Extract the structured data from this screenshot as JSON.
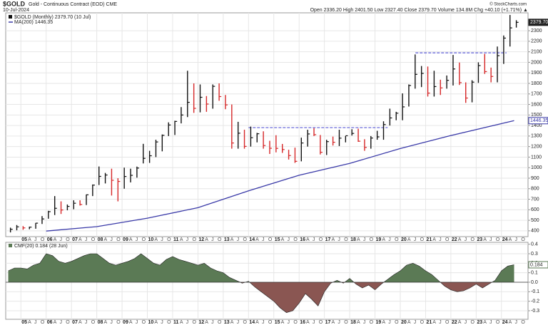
{
  "chart_data": [
    {
      "type": "ohlc",
      "title": "$GOLD",
      "subtitle": "Gold - Continuous Contract (EOD) CME",
      "date": "10-Jul-2024",
      "quote": "Open 2336.20  High 2401.50  Low 2327.40  Close 2379.70  Volume 134.8M  Chg +40.10 (+1.71%) ▲",
      "credit": "© StockCharts.com",
      "name": "$GOLD (Monthly) 2379.70 (10 Jul)",
      "up_color": "#111111",
      "down_color": "#d62728",
      "x": [
        2004.5,
        2004.75,
        2005,
        2005.25,
        2005.5,
        2005.75,
        2006,
        2006.25,
        2006.5,
        2006.75,
        2007,
        2007.25,
        2007.5,
        2007.75,
        2008,
        2008.25,
        2008.5,
        2008.75,
        2009,
        2009.25,
        2009.5,
        2009.75,
        2010,
        2010.25,
        2010.5,
        2010.75,
        2011,
        2011.25,
        2011.5,
        2011.75,
        2012,
        2012.25,
        2012.5,
        2012.75,
        2013,
        2013.25,
        2013.5,
        2013.75,
        2014,
        2014.25,
        2014.5,
        2014.75,
        2015,
        2015.25,
        2015.5,
        2015.75,
        2016,
        2016.25,
        2016.5,
        2016.75,
        2017,
        2017.25,
        2017.5,
        2017.75,
        2018,
        2018.25,
        2018.5,
        2018.75,
        2019,
        2019.25,
        2019.5,
        2019.75,
        2020,
        2020.25,
        2020.5,
        2020.75,
        2021,
        2021.25,
        2021.5,
        2021.75,
        2022,
        2022.25,
        2022.5,
        2022.75,
        2023,
        2023.25,
        2023.5,
        2023.75,
        2024,
        2024.25,
        2024.5
      ],
      "high": [
        430,
        455,
        445,
        440,
        475,
        540,
        590,
        730,
        680,
        650,
        690,
        690,
        745,
        840,
        1011,
        950,
        990,
        900,
        1000,
        990,
        1010,
        1226,
        1160,
        1265,
        1315,
        1430,
        1445,
        1575,
        1920,
        1800,
        1790,
        1680,
        1790,
        1800,
        1690,
        1600,
        1435,
        1360,
        1390,
        1330,
        1345,
        1255,
        1308,
        1225,
        1170,
        1190,
        1285,
        1360,
        1375,
        1310,
        1265,
        1295,
        1360,
        1300,
        1365,
        1370,
        1270,
        1300,
        1350,
        1440,
        1560,
        1530,
        1705,
        1790,
        2075,
        1965,
        1960,
        1920,
        1835,
        1875,
        2070,
        1998,
        1810,
        1830,
        2000,
        2080,
        1950,
        2150,
        2255,
        2450,
        2400
      ],
      "low": [
        385,
        405,
        410,
        415,
        420,
        465,
        515,
        550,
        560,
        595,
        605,
        640,
        645,
        730,
        835,
        850,
        735,
        680,
        800,
        860,
        905,
        1040,
        1045,
        1100,
        1155,
        1300,
        1310,
        1420,
        1480,
        1520,
        1525,
        1530,
        1560,
        1635,
        1555,
        1180,
        1180,
        1180,
        1200,
        1240,
        1180,
        1130,
        1145,
        1140,
        1077,
        1045,
        1060,
        1200,
        1300,
        1125,
        1120,
        1210,
        1205,
        1240,
        1305,
        1245,
        1160,
        1180,
        1265,
        1265,
        1400,
        1450,
        1450,
        1580,
        1750,
        1765,
        1675,
        1675,
        1690,
        1750,
        1780,
        1785,
        1615,
        1620,
        1805,
        1890,
        1810,
        1810,
        1985,
        2150,
        2330
      ],
      "close": [
        415,
        438,
        428,
        435,
        473,
        513,
        582,
        614,
        598,
        632,
        662,
        650,
        742,
        834,
        917,
        930,
        880,
        869,
        916,
        927,
        996,
        1088,
        1113,
        1244,
        1307,
        1405,
        1439,
        1500,
        1620,
        1563,
        1668,
        1604,
        1772,
        1675,
        1596,
        1234,
        1327,
        1202,
        1284,
        1322,
        1210,
        1184,
        1183,
        1172,
        1115,
        1060,
        1234,
        1320,
        1313,
        1146,
        1247,
        1241,
        1280,
        1303,
        1325,
        1251,
        1192,
        1281,
        1292,
        1409,
        1472,
        1517,
        1577,
        1780,
        1886,
        1895,
        1708,
        1770,
        1757,
        1829,
        1937,
        1807,
        1661,
        1812,
        1969,
        1912,
        1866,
        2063,
        2230,
        2327,
        2379.7
      ],
      "last_label": "2379.70",
      "ma": {
        "name": "MA(200) 1446.35",
        "color": "#3a3aa8",
        "label": "1446.35",
        "x": [
          2006,
          2008,
          2010,
          2012,
          2014,
          2016,
          2018,
          2020,
          2022,
          2024.5
        ],
        "values": [
          398,
          440,
          520,
          620,
          780,
          928,
          1040,
          1182,
          1305,
          1446.35
        ]
      },
      "levels": [
        {
          "y": 1380,
          "x": [
            2014,
            2019.5
          ]
        },
        {
          "y": 2090,
          "x": [
            2020.6,
            2024.2
          ]
        }
      ],
      "level_color": "#5b5bd6",
      "xlim": [
        2004.4,
        2025.05
      ],
      "ylim": [
        345,
        2470
      ],
      "yticks": [
        400,
        500,
        600,
        700,
        800,
        900,
        1000,
        1100,
        1200,
        1300,
        1400,
        1500,
        1600,
        1700,
        1800,
        1900,
        2000,
        2100,
        2200,
        2300
      ],
      "xticks": [
        {
          "value": 2005,
          "label": "05"
        },
        {
          "value": 2006,
          "label": "06"
        },
        {
          "value": 2007,
          "label": "07"
        },
        {
          "value": 2008,
          "label": "08"
        },
        {
          "value": 2009,
          "label": "09"
        },
        {
          "value": 2010,
          "label": "10"
        },
        {
          "value": 2011,
          "label": "11"
        },
        {
          "value": 2012,
          "label": "12"
        },
        {
          "value": 2013,
          "label": "13"
        },
        {
          "value": 2014,
          "label": "14"
        },
        {
          "value": 2015,
          "label": "15"
        },
        {
          "value": 2016,
          "label": "16"
        },
        {
          "value": 2017,
          "label": "17"
        },
        {
          "value": 2018,
          "label": "18"
        },
        {
          "value": 2019,
          "label": "19"
        },
        {
          "value": 2020,
          "label": "20"
        },
        {
          "value": 2021,
          "label": "21"
        },
        {
          "value": 2022,
          "label": "22"
        },
        {
          "value": 2023,
          "label": "23"
        },
        {
          "value": 2024,
          "label": "24"
        }
      ],
      "month_labels": [
        "A",
        "J",
        "O"
      ],
      "grid": true
    },
    {
      "type": "area",
      "name": "CMF(20) 0.184 (28 Jun)",
      "pos_color": "#5b7a55",
      "neg_color": "#8a5652",
      "line_color": "#222222",
      "x": [
        2004.5,
        2004.75,
        2005,
        2005.25,
        2005.5,
        2005.75,
        2006,
        2006.25,
        2006.5,
        2006.75,
        2007,
        2007.25,
        2007.5,
        2007.75,
        2008,
        2008.25,
        2008.5,
        2008.75,
        2009,
        2009.25,
        2009.5,
        2009.75,
        2010,
        2010.25,
        2010.5,
        2010.75,
        2011,
        2011.25,
        2011.5,
        2011.75,
        2012,
        2012.25,
        2012.5,
        2012.75,
        2013,
        2013.25,
        2013.5,
        2013.75,
        2014,
        2014.25,
        2014.5,
        2014.75,
        2015,
        2015.25,
        2015.5,
        2015.75,
        2016,
        2016.25,
        2016.5,
        2016.75,
        2017,
        2017.25,
        2017.5,
        2017.75,
        2018,
        2018.25,
        2018.5,
        2018.75,
        2019,
        2019.25,
        2019.5,
        2019.75,
        2020,
        2020.25,
        2020.5,
        2020.75,
        2021,
        2021.25,
        2021.5,
        2021.75,
        2022,
        2022.25,
        2022.5,
        2022.75,
        2023,
        2023.25,
        2023.5,
        2023.75,
        2024,
        2024.25,
        2024.5
      ],
      "values": [
        0.12,
        0.15,
        0.15,
        0.14,
        0.18,
        0.2,
        0.3,
        0.28,
        0.22,
        0.2,
        0.22,
        0.25,
        0.28,
        0.3,
        0.3,
        0.25,
        0.2,
        0.18,
        0.2,
        0.22,
        0.25,
        0.3,
        0.25,
        0.2,
        0.18,
        0.24,
        0.27,
        0.24,
        0.22,
        0.2,
        0.18,
        0.2,
        0.15,
        0.12,
        0.1,
        0.05,
        0.02,
        -0.01,
        0.01,
        -0.05,
        -0.1,
        -0.15,
        -0.2,
        -0.27,
        -0.32,
        -0.3,
        -0.22,
        -0.12,
        -0.18,
        -0.25,
        -0.1,
        -0.01,
        0.02,
        -0.01,
        0.04,
        -0.02,
        -0.06,
        -0.03,
        -0.08,
        -0.02,
        0.03,
        0.08,
        0.12,
        0.18,
        0.2,
        0.17,
        0.12,
        0.08,
        0.02,
        -0.04,
        -0.08,
        -0.1,
        -0.09,
        -0.06,
        -0.02,
        -0.06,
        -0.02,
        0.02,
        0.12,
        0.17,
        0.184
      ],
      "last_label": "0.184",
      "ylim": [
        -0.39,
        0.42
      ],
      "yticks": [
        -0.3,
        -0.2,
        -0.1,
        {
          "value": 0,
          "label": "0.0"
        },
        0.1,
        0.2,
        0.3,
        0.4
      ],
      "grid": true
    }
  ]
}
